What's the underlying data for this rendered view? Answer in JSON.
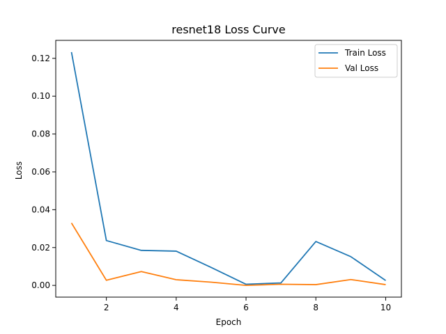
{
  "chart_data": {
    "type": "line",
    "title": "resnet18 Loss Curve",
    "xlabel": "Epoch",
    "ylabel": "Loss",
    "x": [
      1,
      2,
      3,
      4,
      5,
      6,
      7,
      8,
      9,
      10
    ],
    "series": [
      {
        "name": "Train Loss",
        "values": [
          0.1233,
          0.0237,
          0.0185,
          0.0181,
          0.0095,
          0.0006,
          0.0013,
          0.0232,
          0.0152,
          0.0026
        ],
        "color": "#1f77b4"
      },
      {
        "name": "Val Loss",
        "values": [
          0.033,
          0.0027,
          0.0073,
          0.003,
          0.0017,
          0.0,
          0.0006,
          0.0004,
          0.0031,
          0.0004
        ],
        "color": "#ff7f0e"
      }
    ],
    "xlim": [
      0.55,
      10.45
    ],
    "ylim": [
      -0.0062,
      0.1295
    ],
    "xticks": [
      2,
      4,
      6,
      8,
      10
    ],
    "xtick_labels": [
      "2",
      "4",
      "6",
      "8",
      "10"
    ],
    "yticks": [
      0,
      0.02,
      0.04,
      0.06,
      0.08,
      0.1,
      0.12
    ],
    "ytick_labels": [
      "0.00",
      "0.02",
      "0.04",
      "0.06",
      "0.08",
      "0.10",
      "0.12"
    ],
    "grid": false,
    "legend_position": "top-right"
  }
}
